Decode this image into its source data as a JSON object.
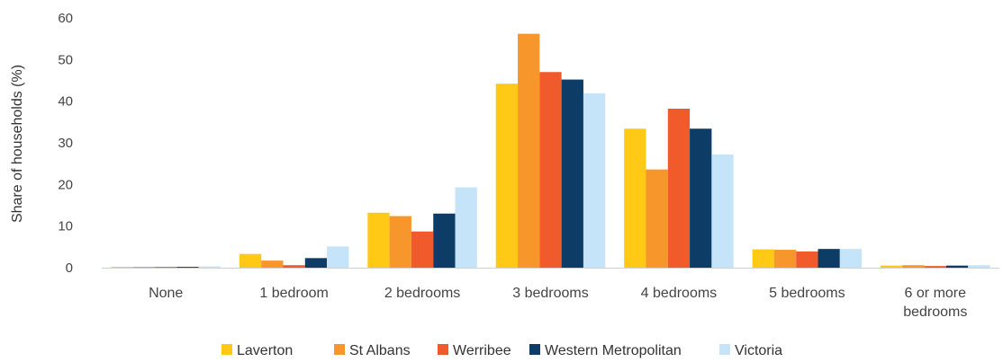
{
  "chart_data": {
    "type": "bar",
    "title": "",
    "xlabel": "",
    "ylabel": "Share of households (%)",
    "ylim": [
      0,
      60
    ],
    "yticks": [
      0,
      10,
      20,
      30,
      40,
      50,
      60
    ],
    "grid": false,
    "legend_position": "bottom",
    "categories": [
      [
        "None"
      ],
      [
        "1 bedroom"
      ],
      [
        "2 bedrooms"
      ],
      [
        "3 bedrooms"
      ],
      [
        "4 bedrooms"
      ],
      [
        "5 bedrooms"
      ],
      [
        "6 or more",
        "bedrooms"
      ]
    ],
    "series": [
      {
        "name": "Laverton",
        "color": "#FFC916",
        "values": [
          0.2,
          3.3,
          13.2,
          44.2,
          33.4,
          4.4,
          0.5
        ]
      },
      {
        "name": "St Albans",
        "color": "#F7962B",
        "values": [
          0.2,
          1.7,
          12.4,
          56.2,
          23.6,
          4.3,
          0.6
        ]
      },
      {
        "name": "Werribee",
        "color": "#F15A2A",
        "values": [
          0.2,
          0.6,
          8.7,
          47.0,
          38.2,
          3.9,
          0.4
        ]
      },
      {
        "name": "Western Metropolitan",
        "color": "#0D3D66",
        "values": [
          0.2,
          2.3,
          13.0,
          45.2,
          33.4,
          4.5,
          0.5
        ]
      },
      {
        "name": "Victoria",
        "color": "#C5E4FA",
        "values": [
          0.3,
          5.1,
          19.3,
          41.9,
          27.2,
          4.5,
          0.6
        ]
      }
    ]
  }
}
